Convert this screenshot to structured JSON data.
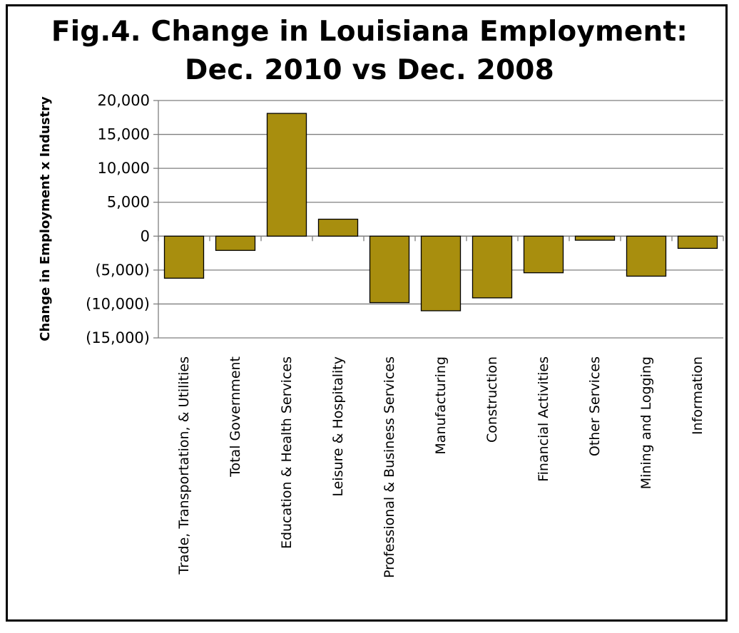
{
  "chart_data": {
    "type": "bar",
    "title_line1": "Fig.4. Change in Louisiana Employment:",
    "title_line2": "Dec. 2010 vs Dec. 2008",
    "xlabel": "",
    "ylabel": "Change in Employment x Industry",
    "ylim": [
      -15000,
      20000
    ],
    "yticks": [
      20000,
      15000,
      10000,
      5000,
      0,
      -5000,
      -10000,
      -15000
    ],
    "ytick_labels": [
      "20,000",
      "15,000",
      "10,000",
      "5,000",
      "0",
      "(5,000)",
      "(10,000)",
      "(15,000)"
    ],
    "grid": true,
    "categories": [
      "Trade, Transportation,  & Utilities",
      "Total Government",
      "Education & Health Services",
      "Leisure & Hospitality",
      "Professional & Business Services",
      "Manufacturing",
      "Construction",
      "Financial Activities",
      "Other Services",
      "Mining and Logging",
      "Information"
    ],
    "values": [
      -6200,
      -2100,
      18100,
      2500,
      -9800,
      -11000,
      -9100,
      -5400,
      -600,
      -5900,
      -1800
    ],
    "colors": {
      "bar": "#A88E0E",
      "bar_edge": "#000000",
      "grid": "#7F7F7F",
      "axis": "#7F7F7F"
    }
  }
}
